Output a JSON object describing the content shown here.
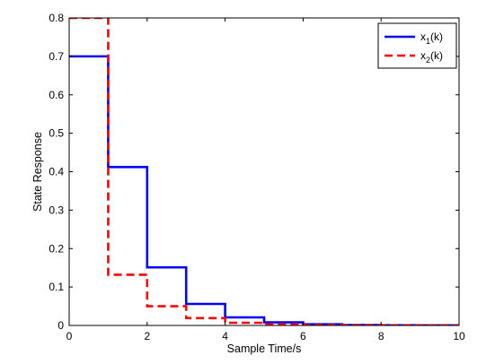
{
  "chart_data": {
    "type": "line",
    "step": true,
    "title": "",
    "xlabel": "Sample Time/s",
    "ylabel": "State Response",
    "xlim": [
      0,
      10
    ],
    "ylim": [
      0,
      0.8
    ],
    "xticks": [
      0,
      2,
      4,
      6,
      8,
      10
    ],
    "yticks": [
      0,
      0.1,
      0.2,
      0.3,
      0.4,
      0.5,
      0.6,
      0.7,
      0.8
    ],
    "grid": false,
    "legend_position": "top-right",
    "series": [
      {
        "name": "x1(k)",
        "label_base": "x",
        "label_sub": "1",
        "label_suffix": "(k)",
        "color": "#0000ff",
        "dash": "solid",
        "x": [
          0,
          1,
          2,
          3,
          4,
          5,
          6,
          7,
          8,
          9,
          10
        ],
        "values": [
          0.7,
          0.412,
          0.151,
          0.056,
          0.021,
          0.008,
          0.003,
          0.001,
          0.0005,
          0.0002,
          0.0001
        ]
      },
      {
        "name": "x2(k)",
        "label_base": "x",
        "label_sub": "2",
        "label_suffix": "(k)",
        "color": "#ff0000",
        "dash": "dashed",
        "x": [
          0,
          1,
          2,
          3,
          4,
          5,
          6,
          7,
          8,
          9,
          10
        ],
        "values": [
          0.8,
          0.132,
          0.05,
          0.019,
          0.007,
          0.003,
          0.001,
          0.0005,
          0.0002,
          0.0001,
          0.0001
        ]
      }
    ]
  }
}
